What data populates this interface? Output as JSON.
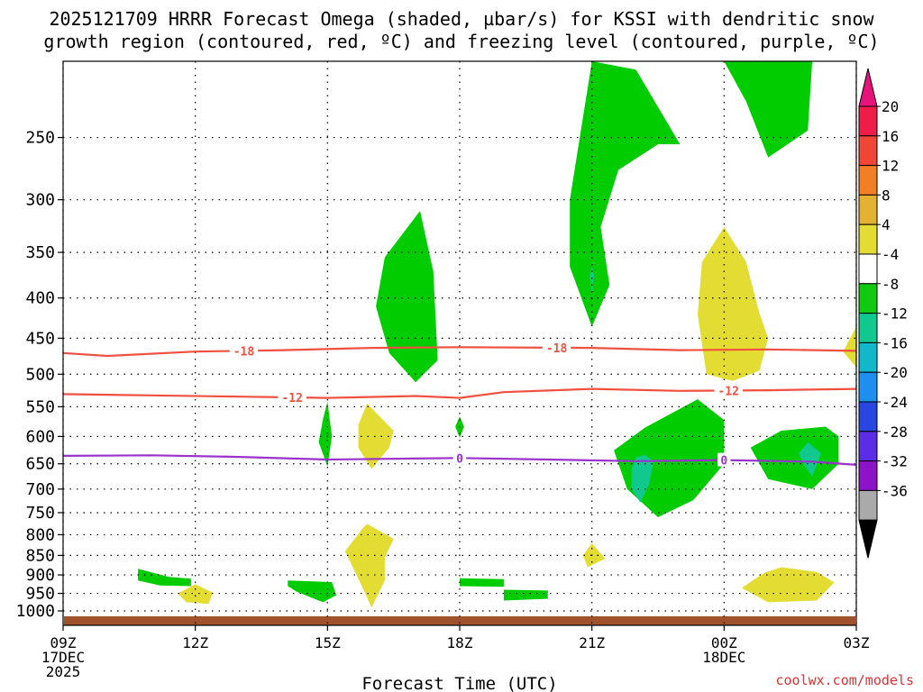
{
  "title_line1": "2025121709 HRRR Forecast Omega (shaded, µbar/s) for KSSI with dendritic snow",
  "title_line2": "growth region (contoured, red, ºC) and freezing level (contoured, purple, ºC)",
  "xlabel": "Forecast Time (UTC)",
  "credit": "coolwx.com/models",
  "colors": {
    "green": "#00cc00",
    "teal": "#11c98f",
    "yellow": "#e3dc32",
    "red_contour": "#f05040",
    "purple_contour": "#9933cc",
    "ground": "#a0522d",
    "grid": "#000000"
  },
  "chart_data": {
    "type": "time-height contour",
    "x_hours_range": [
      0,
      18
    ],
    "pressure_range_hPa": [
      1000,
      200
    ],
    "y_ticks": [
      {
        "p": 250,
        "label": "250"
      },
      {
        "p": 300,
        "label": "300"
      },
      {
        "p": 350,
        "label": "350"
      },
      {
        "p": 400,
        "label": "400"
      },
      {
        "p": 450,
        "label": "450"
      },
      {
        "p": 500,
        "label": "500"
      },
      {
        "p": 550,
        "label": "550"
      },
      {
        "p": 600,
        "label": "600"
      },
      {
        "p": 650,
        "label": "650"
      },
      {
        "p": 700,
        "label": "700"
      },
      {
        "p": 750,
        "label": "750"
      },
      {
        "p": 800,
        "label": "800"
      },
      {
        "p": 850,
        "label": "850"
      },
      {
        "p": 900,
        "label": "900"
      },
      {
        "p": 950,
        "label": "950"
      },
      {
        "p": 1000,
        "label": "1000"
      }
    ],
    "x_ticks": [
      {
        "h": 0,
        "lines": [
          "09Z",
          "17DEC",
          "2025"
        ]
      },
      {
        "h": 3,
        "lines": [
          "12Z"
        ]
      },
      {
        "h": 6,
        "lines": [
          "15Z"
        ]
      },
      {
        "h": 9,
        "lines": [
          "18Z"
        ]
      },
      {
        "h": 12,
        "lines": [
          "21Z"
        ]
      },
      {
        "h": 15,
        "lines": [
          "00Z",
          "18DEC"
        ]
      },
      {
        "h": 18,
        "lines": [
          "03Z"
        ]
      }
    ],
    "contours": [
      {
        "name": "dgz-minus18",
        "label": "-18",
        "color": "#f05040",
        "points": [
          [
            0,
            470
          ],
          [
            1,
            474
          ],
          [
            3,
            468
          ],
          [
            5,
            466
          ],
          [
            7,
            463
          ],
          [
            9,
            462
          ],
          [
            12,
            463
          ],
          [
            14,
            466
          ],
          [
            16,
            465
          ],
          [
            18,
            467
          ]
        ],
        "label_hours": [
          4.1,
          11.2
        ]
      },
      {
        "name": "dgz-minus12",
        "label": "-12",
        "color": "#f05040",
        "points": [
          [
            0,
            530
          ],
          [
            2,
            532
          ],
          [
            4,
            534
          ],
          [
            6,
            536
          ],
          [
            8,
            533
          ],
          [
            9,
            536
          ],
          [
            10,
            527
          ],
          [
            12,
            522
          ],
          [
            14,
            525
          ],
          [
            16,
            524
          ],
          [
            18,
            522
          ]
        ],
        "label_hours": [
          5.2,
          15.1
        ]
      },
      {
        "name": "freezing-level",
        "label": "0",
        "color": "#9933cc",
        "points": [
          [
            0,
            635
          ],
          [
            2,
            634
          ],
          [
            4,
            637
          ],
          [
            6,
            642
          ],
          [
            8,
            640
          ],
          [
            9,
            639
          ],
          [
            11,
            642
          ],
          [
            13,
            645
          ],
          [
            15,
            643
          ],
          [
            17,
            646
          ],
          [
            18,
            652
          ]
        ],
        "label_hours": [
          9.0,
          15.0
        ]
      }
    ],
    "omega_regions": [
      {
        "cls": "green",
        "value_range": "-8 to -4",
        "pts": [
          [
            12.0,
            200
          ],
          [
            13.0,
            205
          ],
          [
            14.0,
            255
          ],
          [
            13.5,
            255
          ],
          [
            12.6,
            275
          ],
          [
            12.2,
            325
          ],
          [
            12.4,
            385
          ],
          [
            12.0,
            435
          ],
          [
            11.5,
            365
          ],
          [
            11.5,
            300
          ]
        ]
      },
      {
        "cls": "green",
        "value_range": "-8 to -4",
        "pts": [
          [
            15.0,
            200
          ],
          [
            17.0,
            200
          ],
          [
            16.9,
            245
          ],
          [
            16.0,
            265
          ],
          [
            15.5,
            225
          ]
        ]
      },
      {
        "cls": "green",
        "value_range": "-8 to -4",
        "pts": [
          [
            8.1,
            310
          ],
          [
            8.4,
            370
          ],
          [
            8.5,
            480
          ],
          [
            8.0,
            512
          ],
          [
            7.4,
            470
          ],
          [
            7.1,
            410
          ],
          [
            7.3,
            355
          ]
        ]
      },
      {
        "cls": "green",
        "value_range": "-8 to -4",
        "pts": [
          [
            6.0,
            542
          ],
          [
            6.1,
            600
          ],
          [
            6.0,
            655
          ],
          [
            5.8,
            610
          ],
          [
            5.9,
            570
          ]
        ]
      },
      {
        "cls": "green",
        "value_range": "-8 to -4",
        "pts": [
          [
            9.0,
            566
          ],
          [
            9.1,
            583
          ],
          [
            9.0,
            602
          ],
          [
            8.9,
            583
          ]
        ]
      },
      {
        "cls": "green",
        "value_range": "-8 to -4",
        "pts": [
          [
            14.4,
            538
          ],
          [
            15.0,
            572
          ],
          [
            15.0,
            650
          ],
          [
            14.3,
            723
          ],
          [
            13.5,
            760
          ],
          [
            12.8,
            700
          ],
          [
            12.5,
            625
          ],
          [
            13.2,
            585
          ]
        ]
      },
      {
        "cls": "green",
        "value_range": "-8 to -4",
        "pts": [
          [
            17.3,
            583
          ],
          [
            17.6,
            600
          ],
          [
            17.6,
            650
          ],
          [
            17.0,
            700
          ],
          [
            16.0,
            680
          ],
          [
            15.6,
            620
          ],
          [
            16.3,
            590
          ]
        ]
      },
      {
        "cls": "green",
        "value_range": "-8 to -4",
        "pts": [
          [
            1.7,
            884
          ],
          [
            2.4,
            905
          ],
          [
            2.9,
            910
          ],
          [
            2.9,
            930
          ],
          [
            2.2,
            928
          ],
          [
            1.7,
            915
          ]
        ]
      },
      {
        "cls": "green",
        "value_range": "-8 to -4",
        "pts": [
          [
            5.1,
            915
          ],
          [
            6.1,
            919
          ],
          [
            6.2,
            955
          ],
          [
            5.9,
            975
          ],
          [
            5.3,
            945
          ],
          [
            5.1,
            930
          ]
        ]
      },
      {
        "cls": "green",
        "value_range": "-8 to -4",
        "pts": [
          [
            9.0,
            909
          ],
          [
            10.0,
            911
          ],
          [
            10.0,
            932
          ],
          [
            9.0,
            930
          ]
        ]
      },
      {
        "cls": "green",
        "value_range": "-8 to -4",
        "pts": [
          [
            10.0,
            940
          ],
          [
            11.0,
            942
          ],
          [
            11.0,
            965
          ],
          [
            10.0,
            970
          ]
        ]
      },
      {
        "cls": "teal",
        "value_range": "-12 to -8",
        "pts": [
          [
            12.0,
            365
          ],
          [
            12.05,
            375
          ],
          [
            12.0,
            395
          ],
          [
            11.95,
            375
          ]
        ]
      },
      {
        "cls": "teal",
        "value_range": "-12 to -8",
        "pts": [
          [
            13.2,
            633
          ],
          [
            13.4,
            645
          ],
          [
            13.3,
            690
          ],
          [
            13.1,
            728
          ],
          [
            12.9,
            700
          ],
          [
            12.9,
            660
          ],
          [
            13.0,
            638
          ]
        ]
      },
      {
        "cls": "teal",
        "value_range": "-12 to -8",
        "pts": [
          [
            16.9,
            610
          ],
          [
            17.2,
            630
          ],
          [
            17.0,
            675
          ],
          [
            16.8,
            650
          ],
          [
            16.7,
            630
          ]
        ]
      },
      {
        "cls": "yellow",
        "value_range": "4 to 8",
        "pts": [
          [
            15.0,
            325
          ],
          [
            15.5,
            360
          ],
          [
            15.8,
            418
          ],
          [
            16.0,
            450
          ],
          [
            15.8,
            495
          ],
          [
            15.2,
            510
          ],
          [
            14.6,
            500
          ],
          [
            14.4,
            420
          ],
          [
            14.5,
            360
          ]
        ]
      },
      {
        "cls": "yellow",
        "value_range": "4 to 8",
        "pts": [
          [
            18.0,
            435
          ],
          [
            18.0,
            490
          ],
          [
            17.7,
            468
          ]
        ]
      },
      {
        "cls": "yellow",
        "value_range": "4 to 8",
        "pts": [
          [
            6.9,
            545
          ],
          [
            7.5,
            590
          ],
          [
            7.4,
            620
          ],
          [
            7.0,
            660
          ],
          [
            6.7,
            620
          ],
          [
            6.7,
            580
          ]
        ]
      },
      {
        "cls": "yellow",
        "value_range": "4 to 8",
        "pts": [
          [
            6.9,
            775
          ],
          [
            7.5,
            810
          ],
          [
            7.3,
            855
          ],
          [
            7.3,
            915
          ],
          [
            7.0,
            990
          ],
          [
            6.8,
            935
          ],
          [
            6.4,
            840
          ],
          [
            6.8,
            785
          ]
        ]
      },
      {
        "cls": "yellow",
        "value_range": "4 to 8",
        "pts": [
          [
            12.0,
            820
          ],
          [
            12.3,
            858
          ],
          [
            11.9,
            880
          ],
          [
            11.8,
            850
          ]
        ]
      },
      {
        "cls": "yellow",
        "value_range": "4 to 8",
        "pts": [
          [
            3.0,
            925
          ],
          [
            3.4,
            948
          ],
          [
            3.3,
            980
          ],
          [
            2.8,
            975
          ],
          [
            2.6,
            950
          ]
        ]
      },
      {
        "cls": "yellow",
        "value_range": "4 to 8",
        "pts": [
          [
            16.3,
            880
          ],
          [
            17.1,
            892
          ],
          [
            17.5,
            920
          ],
          [
            17.1,
            970
          ],
          [
            16.0,
            975
          ],
          [
            15.4,
            935
          ],
          [
            15.9,
            895
          ]
        ]
      }
    ],
    "colorbar": {
      "labels": [
        "20",
        "16",
        "12",
        "8",
        "4",
        "-4",
        "-8",
        "-12",
        "-16",
        "-20",
        "-24",
        "-28",
        "-32",
        "-36"
      ],
      "colors": [
        "#ee1e4a",
        "#f04638",
        "#f07f26",
        "#e3b232",
        "#e3dc32",
        "#ffffff",
        "#11c911",
        "#11c98f",
        "#11b8cc",
        "#1e8fee",
        "#2846e0",
        "#5a2de6",
        "#8c14c8",
        "#aaaaaa"
      ],
      "top_arrow_color": "#e8127d",
      "bottom_arrow_color": "#000000"
    }
  }
}
